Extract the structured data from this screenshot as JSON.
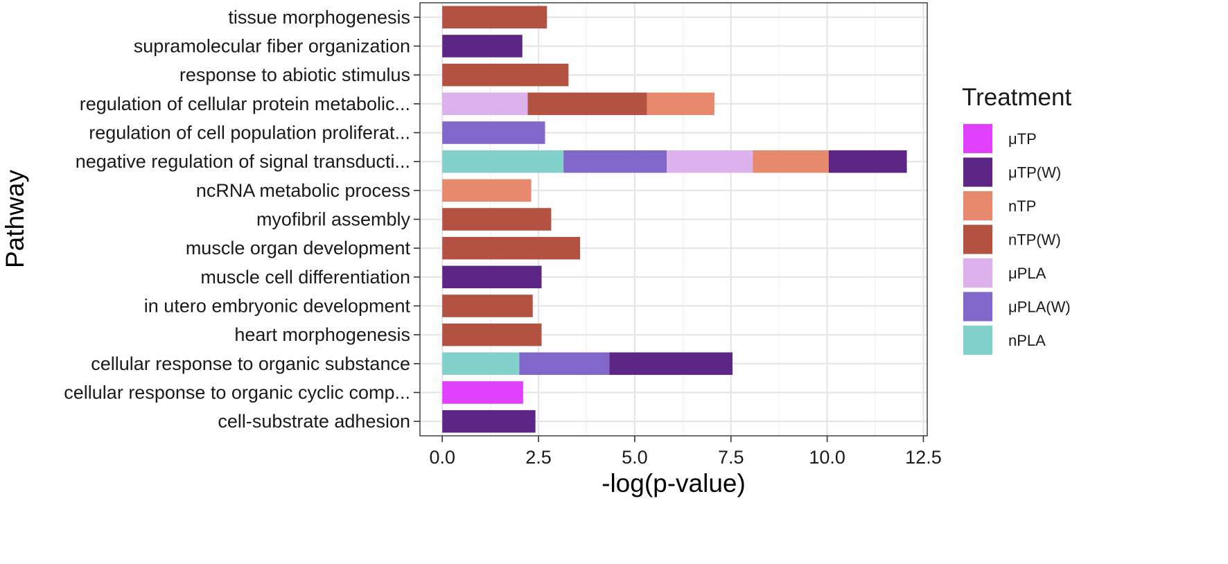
{
  "chart_data": {
    "type": "bar",
    "orientation": "horizontal",
    "stacked": true,
    "xlabel": "-log(p-value)",
    "ylabel": "Pathway",
    "xlim": [
      -0.58,
      12.6
    ],
    "x_ticks": [
      0.0,
      2.5,
      5.0,
      7.5,
      10.0,
      12.5
    ],
    "x_tick_labels": [
      "0.0",
      "2.5",
      "5.0",
      "7.5",
      "10.0",
      "12.5"
    ],
    "grid": true,
    "legend_title": "Treatment",
    "legend_position": "right",
    "treatments": [
      {
        "name": "μTP",
        "color": "#e040fb"
      },
      {
        "name": "μTP(W)",
        "color": "#5c2586"
      },
      {
        "name": "nTP",
        "color": "#e6896d"
      },
      {
        "name": "nTP(W)",
        "color": "#b35240"
      },
      {
        "name": "μPLA",
        "color": "#ddb1ec"
      },
      {
        "name": "μPLA(W)",
        "color": "#8167ca"
      },
      {
        "name": "nPLA",
        "color": "#82d1cb"
      }
    ],
    "categories": [
      "tissue morphogenesis",
      "supramolecular fiber organization",
      "response to abiotic stimulus",
      "regulation of cellular protein metabolic...",
      "regulation of cell population proliferat...",
      "negative regulation of signal transducti...",
      "ncRNA metabolic process",
      "myofibril assembly",
      "muscle organ development",
      "muscle cell differentiation",
      "in utero embryonic development",
      "heart morphogenesis",
      "cellular response to organic substance",
      "cellular response to organic cyclic comp...",
      "cell-substrate adhesion"
    ],
    "bars": [
      {
        "pathway": "tissue morphogenesis",
        "segments": [
          {
            "treatment": "nTP(W)",
            "value": 2.72
          }
        ]
      },
      {
        "pathway": "supramolecular fiber organization",
        "segments": [
          {
            "treatment": "μTP(W)",
            "value": 2.08
          }
        ]
      },
      {
        "pathway": "response to abiotic stimulus",
        "segments": [
          {
            "treatment": "nTP(W)",
            "value": 3.28
          }
        ]
      },
      {
        "pathway": "regulation of cellular protein metabolic...",
        "segments": [
          {
            "treatment": "μPLA",
            "value": 2.22
          },
          {
            "treatment": "nTP(W)",
            "value": 3.1
          },
          {
            "treatment": "nTP",
            "value": 1.75
          }
        ]
      },
      {
        "pathway": "regulation of cell population proliferat...",
        "segments": [
          {
            "treatment": "μPLA(W)",
            "value": 2.67
          }
        ]
      },
      {
        "pathway": "negative regulation of signal transducti...",
        "segments": [
          {
            "treatment": "nPLA",
            "value": 3.15
          },
          {
            "treatment": "μPLA(W)",
            "value": 2.68
          },
          {
            "treatment": "μPLA",
            "value": 2.24
          },
          {
            "treatment": "nTP",
            "value": 1.97
          },
          {
            "treatment": "μTP(W)",
            "value": 2.03
          }
        ]
      },
      {
        "pathway": "ncRNA metabolic process",
        "segments": [
          {
            "treatment": "nTP",
            "value": 2.31
          }
        ]
      },
      {
        "pathway": "myofibril assembly",
        "segments": [
          {
            "treatment": "nTP(W)",
            "value": 2.83
          }
        ]
      },
      {
        "pathway": "muscle organ development",
        "segments": [
          {
            "treatment": "nTP(W)",
            "value": 3.58
          }
        ]
      },
      {
        "pathway": "muscle cell differentiation",
        "segments": [
          {
            "treatment": "μTP(W)",
            "value": 2.58
          }
        ]
      },
      {
        "pathway": "in utero embryonic development",
        "segments": [
          {
            "treatment": "nTP(W)",
            "value": 2.35
          }
        ]
      },
      {
        "pathway": "heart morphogenesis",
        "segments": [
          {
            "treatment": "nTP(W)",
            "value": 2.58
          }
        ]
      },
      {
        "pathway": "cellular response to organic substance",
        "segments": [
          {
            "treatment": "nPLA",
            "value": 2.0
          },
          {
            "treatment": "μPLA(W)",
            "value": 2.34
          },
          {
            "treatment": "μTP(W)",
            "value": 3.2
          }
        ]
      },
      {
        "pathway": "cellular response to organic cyclic comp...",
        "segments": [
          {
            "treatment": "μTP",
            "value": 2.1
          }
        ]
      },
      {
        "pathway": "cell-substrate adhesion",
        "segments": [
          {
            "treatment": "μTP(W)",
            "value": 2.42
          }
        ]
      }
    ]
  }
}
